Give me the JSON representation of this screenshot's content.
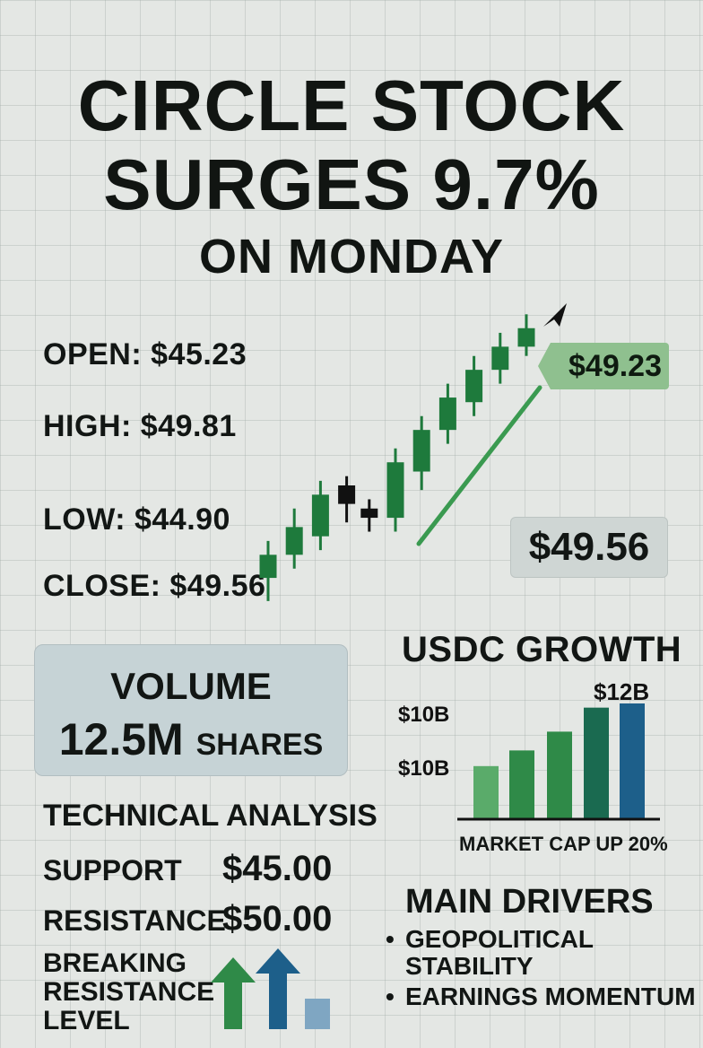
{
  "header": {
    "line1": "CIRCLE STOCK",
    "line2": "SURGES 9.7%",
    "line3": "ON MONDAY"
  },
  "ohlc": {
    "open": "OPEN: $45.23",
    "high": "HIGH: $49.81",
    "low": "LOW: $44.90",
    "close": "CLOSE: $49.56"
  },
  "price_tag": "$49.23",
  "close_badge": "$49.56",
  "volume": {
    "label": "VOLUME",
    "value": "12.5M",
    "unit": "SHARES"
  },
  "technical": {
    "title": "TECHNICAL ANALYSIS",
    "support_label": "SUPPORT",
    "support_value": "$45.00",
    "resistance_label": "RESISTANCE",
    "resistance_value": "$50.00",
    "breaking": [
      "BREAKING",
      "RESISTANCE",
      "LEVEL"
    ]
  },
  "usdc": {
    "title": "USDC GROWTH",
    "caption": "MARKET CAP UP 20%"
  },
  "drivers": {
    "title": "MAIN DRIVERS",
    "items": [
      "GEOPOLITICAL STABILITY",
      "EARNINGS MOMENTUM"
    ]
  },
  "colors": {
    "up": "#1e7a3c",
    "down": "#111111",
    "trend": "#3a9a50",
    "bar_light": "#5aab6a",
    "bar_mid": "#2f8a48",
    "bar_dark": "#1a6a50",
    "bar_blue": "#1d5f8a"
  },
  "chart_data": [
    {
      "type": "bar",
      "title": "USDC GROWTH",
      "xlabel": "MARKET CAP UP 20%",
      "tick_labels": [
        "$10B",
        "$10B"
      ],
      "data_labels": [
        "$12B"
      ],
      "values": [
        5.0,
        6.5,
        8.3,
        10.6,
        11.0
      ],
      "ylim": [
        0,
        11.0
      ]
    },
    {
      "type": "candlestick",
      "candles": [
        {
          "o": 44.1,
          "c": 44.6,
          "h": 44.9,
          "l": 43.6,
          "dir": "up"
        },
        {
          "o": 44.6,
          "c": 45.2,
          "h": 45.6,
          "l": 44.3,
          "dir": "up"
        },
        {
          "o": 45.0,
          "c": 45.9,
          "h": 46.2,
          "l": 44.7,
          "dir": "up"
        },
        {
          "o": 46.1,
          "c": 45.7,
          "h": 46.3,
          "l": 45.3,
          "dir": "down"
        },
        {
          "o": 45.6,
          "c": 45.4,
          "h": 45.8,
          "l": 45.1,
          "dir": "down"
        },
        {
          "o": 45.4,
          "c": 46.6,
          "h": 46.9,
          "l": 45.1,
          "dir": "up"
        },
        {
          "o": 46.4,
          "c": 47.3,
          "h": 47.6,
          "l": 46.0,
          "dir": "up"
        },
        {
          "o": 47.3,
          "c": 48.0,
          "h": 48.3,
          "l": 47.0,
          "dir": "up"
        },
        {
          "o": 47.9,
          "c": 48.6,
          "h": 48.9,
          "l": 47.6,
          "dir": "up"
        },
        {
          "o": 48.6,
          "c": 49.1,
          "h": 49.4,
          "l": 48.3,
          "dir": "up"
        },
        {
          "o": 49.1,
          "c": 49.5,
          "h": 49.8,
          "l": 48.9,
          "dir": "up"
        }
      ]
    }
  ]
}
